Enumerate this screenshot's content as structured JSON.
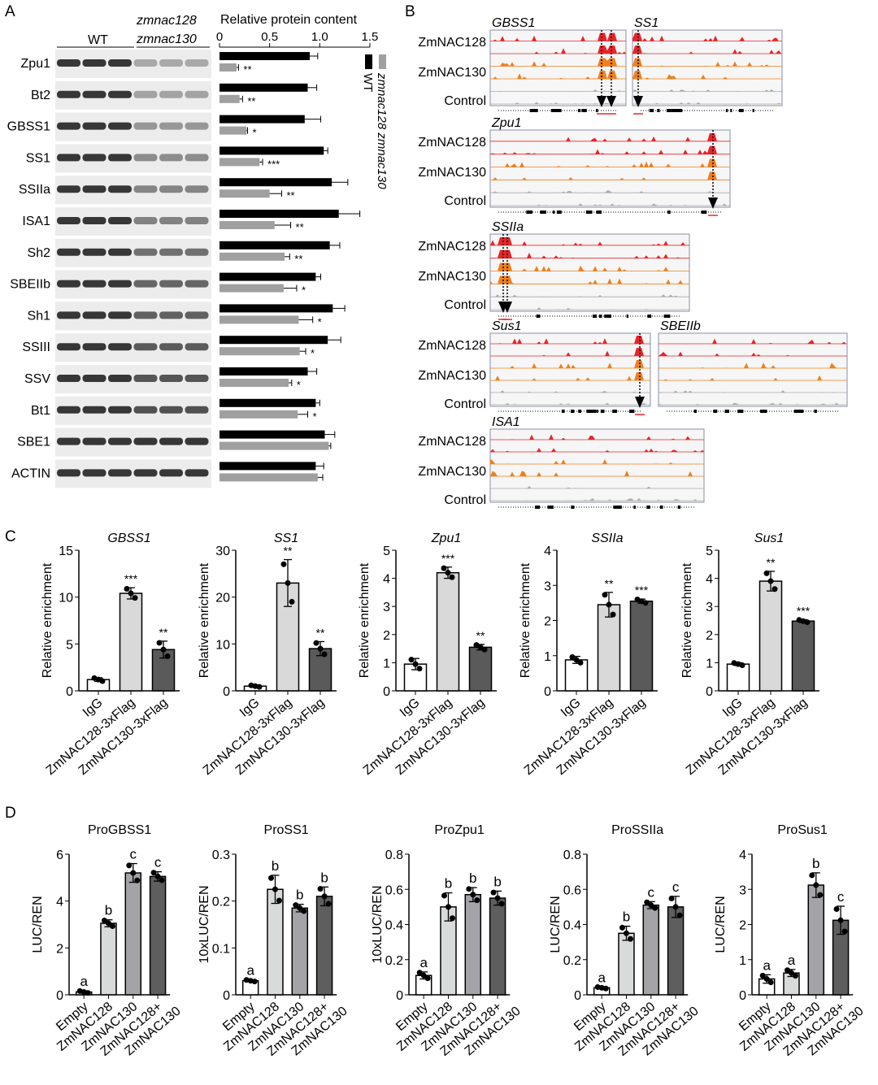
{
  "panels": {
    "a": "A",
    "b": "B",
    "c": "C",
    "d": "D"
  },
  "colors": {
    "wt": "#000000",
    "mutant": "#a0a0a0",
    "zmnac128_track": "#e8242a",
    "zmnac130_track": "#f07f1c",
    "control_track": "#aaaaaa",
    "igg": "#ffffff",
    "c128": "#d9d9d9",
    "c130": "#5a5a5a",
    "d_empty": "#ffffff",
    "d_128": "#d9dbdb",
    "d_130": "#a3a3a8",
    "d_both": "#5e5e5e"
  },
  "panel_a": {
    "header_wt": "WT",
    "header_mut_line1": "zmnac128",
    "header_mut_line2": "zmnac130",
    "legend_wt": "WT",
    "legend_mut": "zmnac128 zmnac130",
    "chart_title": "Relative protein content"
  },
  "panel_b": {
    "track_labels": [
      "ZmNAC128",
      "ZmNAC130",
      "Control"
    ],
    "loci": [
      "GBSS1",
      "SS1",
      "Zpu1",
      "SSIIa",
      "Sus1",
      "SBEIIb",
      "ISA1"
    ]
  },
  "chart_data": [
    {
      "type": "bar",
      "orientation": "horizontal",
      "panel": "A",
      "title": "Relative protein content",
      "xlim": [
        0,
        1.5
      ],
      "xticks": [
        "0",
        "0.5",
        "1.0",
        "1.5"
      ],
      "categories": [
        "Zpu1",
        "Bt2",
        "GBSS1",
        "SS1",
        "SSIIa",
        "ISA1",
        "Sh2",
        "SBEIIb",
        "Sh1",
        "SSIII",
        "SSV",
        "Bt1",
        "SBE1",
        "ACTIN"
      ],
      "series": [
        {
          "name": "WT",
          "values": [
            0.9,
            0.88,
            0.85,
            1.04,
            1.12,
            1.19,
            1.1,
            0.96,
            1.13,
            1.08,
            0.88,
            0.96,
            1.05,
            0.96
          ],
          "errors": [
            0.08,
            0.09,
            0.16,
            0.04,
            0.16,
            0.21,
            0.1,
            0.05,
            0.12,
            0.13,
            0.09,
            0.04,
            0.1,
            0.08
          ]
        },
        {
          "name": "zmnac128 zmnac130",
          "values": [
            0.17,
            0.2,
            0.27,
            0.4,
            0.5,
            0.55,
            0.65,
            0.64,
            0.79,
            0.8,
            0.69,
            0.78,
            1.09,
            0.98
          ],
          "errors": [
            0.02,
            0.03,
            0.01,
            0.03,
            0.12,
            0.16,
            0.05,
            0.13,
            0.14,
            0.06,
            0.03,
            0.1,
            0.02,
            0.05
          ]
        }
      ],
      "significance": [
        "**",
        "**",
        "*",
        "***",
        "**",
        "**",
        "**",
        "*",
        "*",
        "*",
        "*",
        "*",
        "",
        ""
      ]
    },
    {
      "type": "bar",
      "panel": "C",
      "title": "GBSS1",
      "ylabel": "Relative enrichment",
      "ylim": [
        0,
        15
      ],
      "yticks": [
        "0",
        "5",
        "10",
        "15"
      ],
      "categories": [
        "IgG",
        "ZmNAC128-3xFlag",
        "ZmNAC130-3xFlag"
      ],
      "values": [
        1.2,
        10.4,
        4.4
      ],
      "errors": [
        0.2,
        0.6,
        0.9
      ],
      "significance": [
        "",
        "***",
        "**"
      ]
    },
    {
      "type": "bar",
      "panel": "C",
      "title": "SS1",
      "ylabel": "Relative enrichment",
      "ylim": [
        0,
        30
      ],
      "yticks": [
        "0",
        "10",
        "20",
        "30"
      ],
      "categories": [
        "IgG",
        "ZmNAC128-3xFlag",
        "ZmNAC130-3xFlag"
      ],
      "values": [
        1.0,
        23.0,
        9.0
      ],
      "errors": [
        0.2,
        5.0,
        1.5
      ],
      "significance": [
        "",
        "**",
        "**"
      ]
    },
    {
      "type": "bar",
      "panel": "C",
      "title": "Zpu1",
      "ylabel": "Relative enrichment",
      "ylim": [
        0,
        5
      ],
      "yticks": [
        "0",
        "1",
        "2",
        "3",
        "4",
        "5"
      ],
      "categories": [
        "IgG",
        "ZmNAC128-3xFlag",
        "ZmNAC130-3xFlag"
      ],
      "values": [
        0.95,
        4.2,
        1.55
      ],
      "errors": [
        0.2,
        0.2,
        0.1
      ],
      "significance": [
        "",
        "***",
        "**"
      ]
    },
    {
      "type": "bar",
      "panel": "C",
      "title": "SSIIa",
      "ylabel": "Relative enrichment",
      "ylim": [
        0,
        4
      ],
      "yticks": [
        "0",
        "1",
        "2",
        "3",
        "4"
      ],
      "categories": [
        "IgG",
        "ZmNAC128-3xFlag",
        "ZmNAC130-3xFlag"
      ],
      "values": [
        0.88,
        2.45,
        2.55
      ],
      "errors": [
        0.1,
        0.35,
        0.06
      ],
      "significance": [
        "",
        "**",
        "***"
      ]
    },
    {
      "type": "bar",
      "panel": "C",
      "title": "Sus1",
      "ylabel": "Relative enrichment",
      "ylim": [
        0,
        5
      ],
      "yticks": [
        "0",
        "1",
        "2",
        "3",
        "4",
        "5"
      ],
      "categories": [
        "IgG",
        "ZmNAC128-3xFlag",
        "ZmNAC130-3xFlag"
      ],
      "values": [
        0.95,
        3.9,
        2.48
      ],
      "errors": [
        0.05,
        0.35,
        0.05
      ],
      "significance": [
        "",
        "**",
        "***"
      ]
    },
    {
      "type": "bar",
      "panel": "D",
      "title": "ProGBSS1",
      "ylabel": "LUC/REN",
      "ylim": [
        0,
        6
      ],
      "yticks": [
        "0",
        "2",
        "4",
        "6"
      ],
      "categories": [
        "Empty",
        "ZmNAC128",
        "ZmNAC130",
        "ZmNAC128+ ZmNAC130"
      ],
      "values": [
        0.12,
        3.05,
        5.2,
        5.05
      ],
      "errors": [
        0.05,
        0.15,
        0.4,
        0.2
      ],
      "letters": [
        "a",
        "b",
        "c",
        "c"
      ]
    },
    {
      "type": "bar",
      "panel": "D",
      "title": "ProSS1",
      "ylabel": "10xLUC/REN",
      "ylim": [
        0,
        0.3
      ],
      "yticks": [
        "0",
        "0.1",
        "0.2",
        "0.3"
      ],
      "categories": [
        "Empty",
        "ZmNAC128",
        "ZmNAC130",
        "ZmNAC128+ ZmNAC130"
      ],
      "values": [
        0.03,
        0.225,
        0.185,
        0.21
      ],
      "errors": [
        0.002,
        0.03,
        0.008,
        0.02
      ],
      "letters": [
        "a",
        "b",
        "b",
        "b"
      ]
    },
    {
      "type": "bar",
      "panel": "D",
      "title": "ProZpu1",
      "ylabel": "10xLUC/REN",
      "ylim": [
        0,
        0.8
      ],
      "yticks": [
        "0",
        "0.2",
        "0.4",
        "0.6",
        "0.8"
      ],
      "categories": [
        "Empty",
        "ZmNAC128",
        "ZmNAC130",
        "ZmNAC128+ ZmNAC130"
      ],
      "values": [
        0.11,
        0.5,
        0.57,
        0.55
      ],
      "errors": [
        0.02,
        0.08,
        0.04,
        0.04
      ],
      "letters": [
        "a",
        "b",
        "b",
        "b"
      ]
    },
    {
      "type": "bar",
      "panel": "D",
      "title": "ProSSIIa",
      "ylabel": "LUC/REN",
      "ylim": [
        0,
        0.8
      ],
      "yticks": [
        "0",
        "0.2",
        "0.4",
        "0.6",
        "0.8"
      ],
      "categories": [
        "Empty",
        "ZmNAC128",
        "ZmNAC130",
        "ZmNAC128+ ZmNAC130"
      ],
      "values": [
        0.04,
        0.35,
        0.51,
        0.5
      ],
      "errors": [
        0.005,
        0.04,
        0.02,
        0.06
      ],
      "letters": [
        "a",
        "b",
        "c",
        "c"
      ]
    },
    {
      "type": "bar",
      "panel": "D",
      "title": "ProSus1",
      "ylabel": "LUC/REN",
      "ylim": [
        0,
        4
      ],
      "yticks": [
        "0",
        "1",
        "2",
        "3",
        "4"
      ],
      "categories": [
        "Empty",
        "ZmNAC128",
        "ZmNAC130",
        "ZmNAC128+ ZmNAC130"
      ],
      "values": [
        0.45,
        0.62,
        3.12,
        2.12
      ],
      "errors": [
        0.12,
        0.1,
        0.35,
        0.4
      ],
      "letters": [
        "a",
        "a",
        "b",
        "c"
      ]
    }
  ]
}
